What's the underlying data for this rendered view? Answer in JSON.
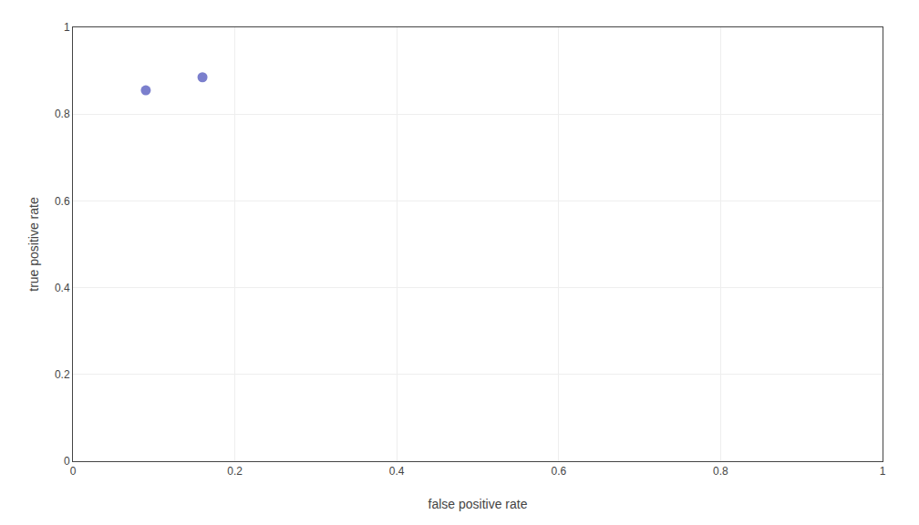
{
  "chart_data": {
    "type": "scatter",
    "x": [
      0.09,
      0.16
    ],
    "values": [
      0.855,
      0.885
    ],
    "color": "#7b7fcd",
    "xlabel": "false positive rate",
    "ylabel": "true positive rate",
    "xlim": [
      0,
      1
    ],
    "ylim": [
      0,
      1
    ],
    "xticks": [
      0,
      0.2,
      0.4,
      0.6,
      0.8,
      1
    ],
    "yticks": [
      0,
      0.2,
      0.4,
      0.6,
      0.8,
      1
    ],
    "grid": true
  }
}
